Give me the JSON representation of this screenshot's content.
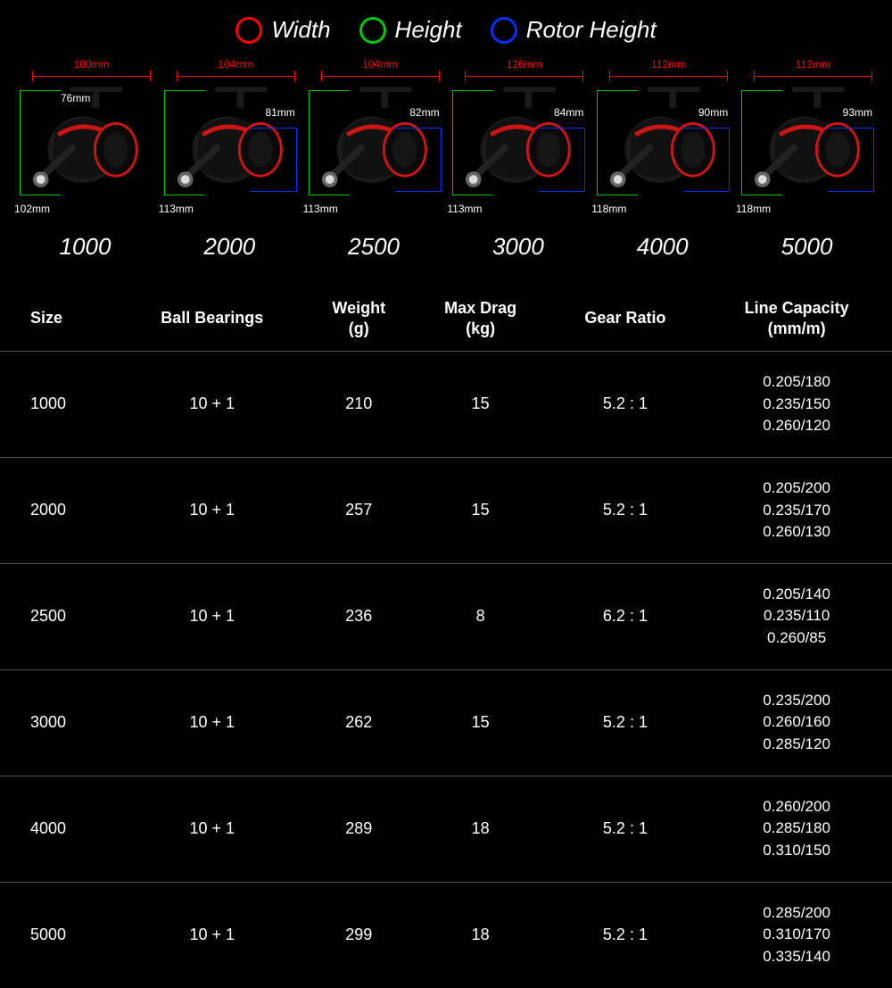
{
  "colors": {
    "width": "#ff0000",
    "height": "#00c800",
    "rotor": "#0030ff",
    "bg": "#000000",
    "text": "#ffffff",
    "reel_dark": "#1a1a1a",
    "reel_red": "#cc1515",
    "reel_grey": "#666666"
  },
  "legend": {
    "width": "Width",
    "height": "Height",
    "rotor": "Rotor Height"
  },
  "reels": [
    {
      "model": "1000",
      "width_mm": "100mm",
      "height_mm": "102mm",
      "height_top_mm": "76mm",
      "rotor_h_mm": "",
      "rotor_w_mm": ""
    },
    {
      "model": "2000",
      "width_mm": "104mm",
      "height_mm": "113mm",
      "height_top_mm": "",
      "rotor_h_mm": "81mm",
      "rotor_w_mm": ""
    },
    {
      "model": "2500",
      "width_mm": "104mm",
      "height_mm": "113mm",
      "height_top_mm": "",
      "rotor_h_mm": "82mm",
      "rotor_w_mm": ""
    },
    {
      "model": "3000",
      "width_mm": "126mm",
      "height_mm": "113mm",
      "height_top_mm": "",
      "rotor_h_mm": "84mm",
      "rotor_w_mm": ""
    },
    {
      "model": "4000",
      "width_mm": "112mm",
      "height_mm": "118mm",
      "height_top_mm": "",
      "rotor_h_mm": "90mm",
      "rotor_w_mm": ""
    },
    {
      "model": "5000",
      "width_mm": "112mm",
      "height_mm": "118mm",
      "height_top_mm": "",
      "rotor_h_mm": "93mm",
      "rotor_w_mm": ""
    }
  ],
  "table": {
    "columns": [
      "Size",
      "Ball Bearings",
      "Weight\n(g)",
      "Max Drag\n(kg)",
      "Gear Ratio",
      "Line Capacity\n(mm/m)"
    ],
    "rows": [
      {
        "size": "1000",
        "bearings": "10 + 1",
        "weight": "210",
        "drag": "15",
        "ratio": "5.2 : 1",
        "capacity": [
          "0.205/180",
          "0.235/150",
          "0.260/120"
        ]
      },
      {
        "size": "2000",
        "bearings": "10 + 1",
        "weight": "257",
        "drag": "15",
        "ratio": "5.2 : 1",
        "capacity": [
          "0.205/200",
          "0.235/170",
          "0.260/130"
        ]
      },
      {
        "size": "2500",
        "bearings": "10 + 1",
        "weight": "236",
        "drag": "8",
        "ratio": "6.2 : 1",
        "capacity": [
          "0.205/140",
          "0.235/110",
          "0.260/85"
        ]
      },
      {
        "size": "3000",
        "bearings": "10 + 1",
        "weight": "262",
        "drag": "15",
        "ratio": "5.2 : 1",
        "capacity": [
          "0.235/200",
          "0.260/160",
          "0.285/120"
        ]
      },
      {
        "size": "4000",
        "bearings": "10 + 1",
        "weight": "289",
        "drag": "18",
        "ratio": "5.2 : 1",
        "capacity": [
          "0.260/200",
          "0.285/180",
          "0.310/150"
        ]
      },
      {
        "size": "5000",
        "bearings": "10 + 1",
        "weight": "299",
        "drag": "18",
        "ratio": "5.2 : 1",
        "capacity": [
          "0.285/200",
          "0.310/170",
          "0.335/140"
        ]
      }
    ]
  }
}
